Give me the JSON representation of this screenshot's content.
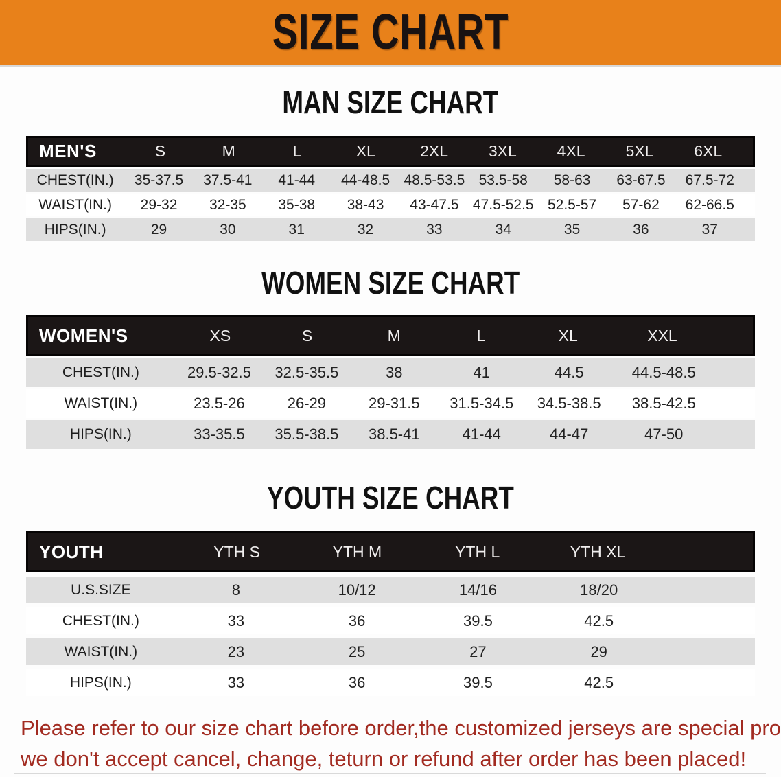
{
  "banner": {
    "title": "SIZE CHART"
  },
  "sections": {
    "men_title": "MAN SIZE CHART",
    "women_title": "WOMEN SIZE CHART",
    "youth_title": "YOUTH SIZE CHART"
  },
  "men": {
    "header": [
      "MEN'S",
      "S",
      "M",
      "L",
      "XL",
      "2XL",
      "3XL",
      "4XL",
      "5XL",
      "6XL"
    ],
    "rows": [
      [
        "CHEST(IN.)",
        "35-37.5",
        "37.5-41",
        "41-44",
        "44-48.5",
        "48.5-53.5",
        "53.5-58",
        "58-63",
        "63-67.5",
        "67.5-72"
      ],
      [
        "WAIST(IN.)",
        "29-32",
        "32-35",
        "35-38",
        "38-43",
        "43-47.5",
        "47.5-52.5",
        "52.5-57",
        "57-62",
        "62-66.5"
      ],
      [
        "HIPS(IN.)",
        "29",
        "30",
        "31",
        "32",
        "33",
        "34",
        "35",
        "36",
        "37"
      ]
    ]
  },
  "women": {
    "header": [
      "WOMEN'S",
      "XS",
      "S",
      "M",
      "L",
      "XL",
      "XXL"
    ],
    "rows": [
      [
        "CHEST(IN.)",
        "29.5-32.5",
        "32.5-35.5",
        "38",
        "41",
        "44.5",
        "44.5-48.5"
      ],
      [
        "WAIST(IN.)",
        "23.5-26",
        "26-29",
        "29-31.5",
        "31.5-34.5",
        "34.5-38.5",
        "38.5-42.5"
      ],
      [
        "HIPS(IN.)",
        "33-35.5",
        "35.5-38.5",
        "38.5-41",
        "41-44",
        "44-47",
        "47-50"
      ]
    ]
  },
  "youth": {
    "header": [
      "YOUTH",
      "YTH S",
      "YTH M",
      "YTH L",
      "YTH XL"
    ],
    "rows": [
      [
        "U.S.SIZE",
        "8",
        "10/12",
        "14/16",
        "18/20"
      ],
      [
        "CHEST(IN.)",
        "33",
        "36",
        "39.5",
        "42.5"
      ],
      [
        "WAIST(IN.)",
        "23",
        "25",
        "27",
        "29"
      ],
      [
        "HIPS(IN.)",
        "33",
        "36",
        "39.5",
        "42.5"
      ]
    ]
  },
  "footer": {
    "line1": "Please refer to our size chart before order,the customized jerseys are special products,",
    "line2": "we don't accept cancel, change, teturn or refund after order has been placed!"
  },
  "colors": {
    "banner_orange": "#E8811A",
    "header_black": "#1B1616",
    "row_gray": "#DFDFDF",
    "note_red": "#A22B21"
  }
}
